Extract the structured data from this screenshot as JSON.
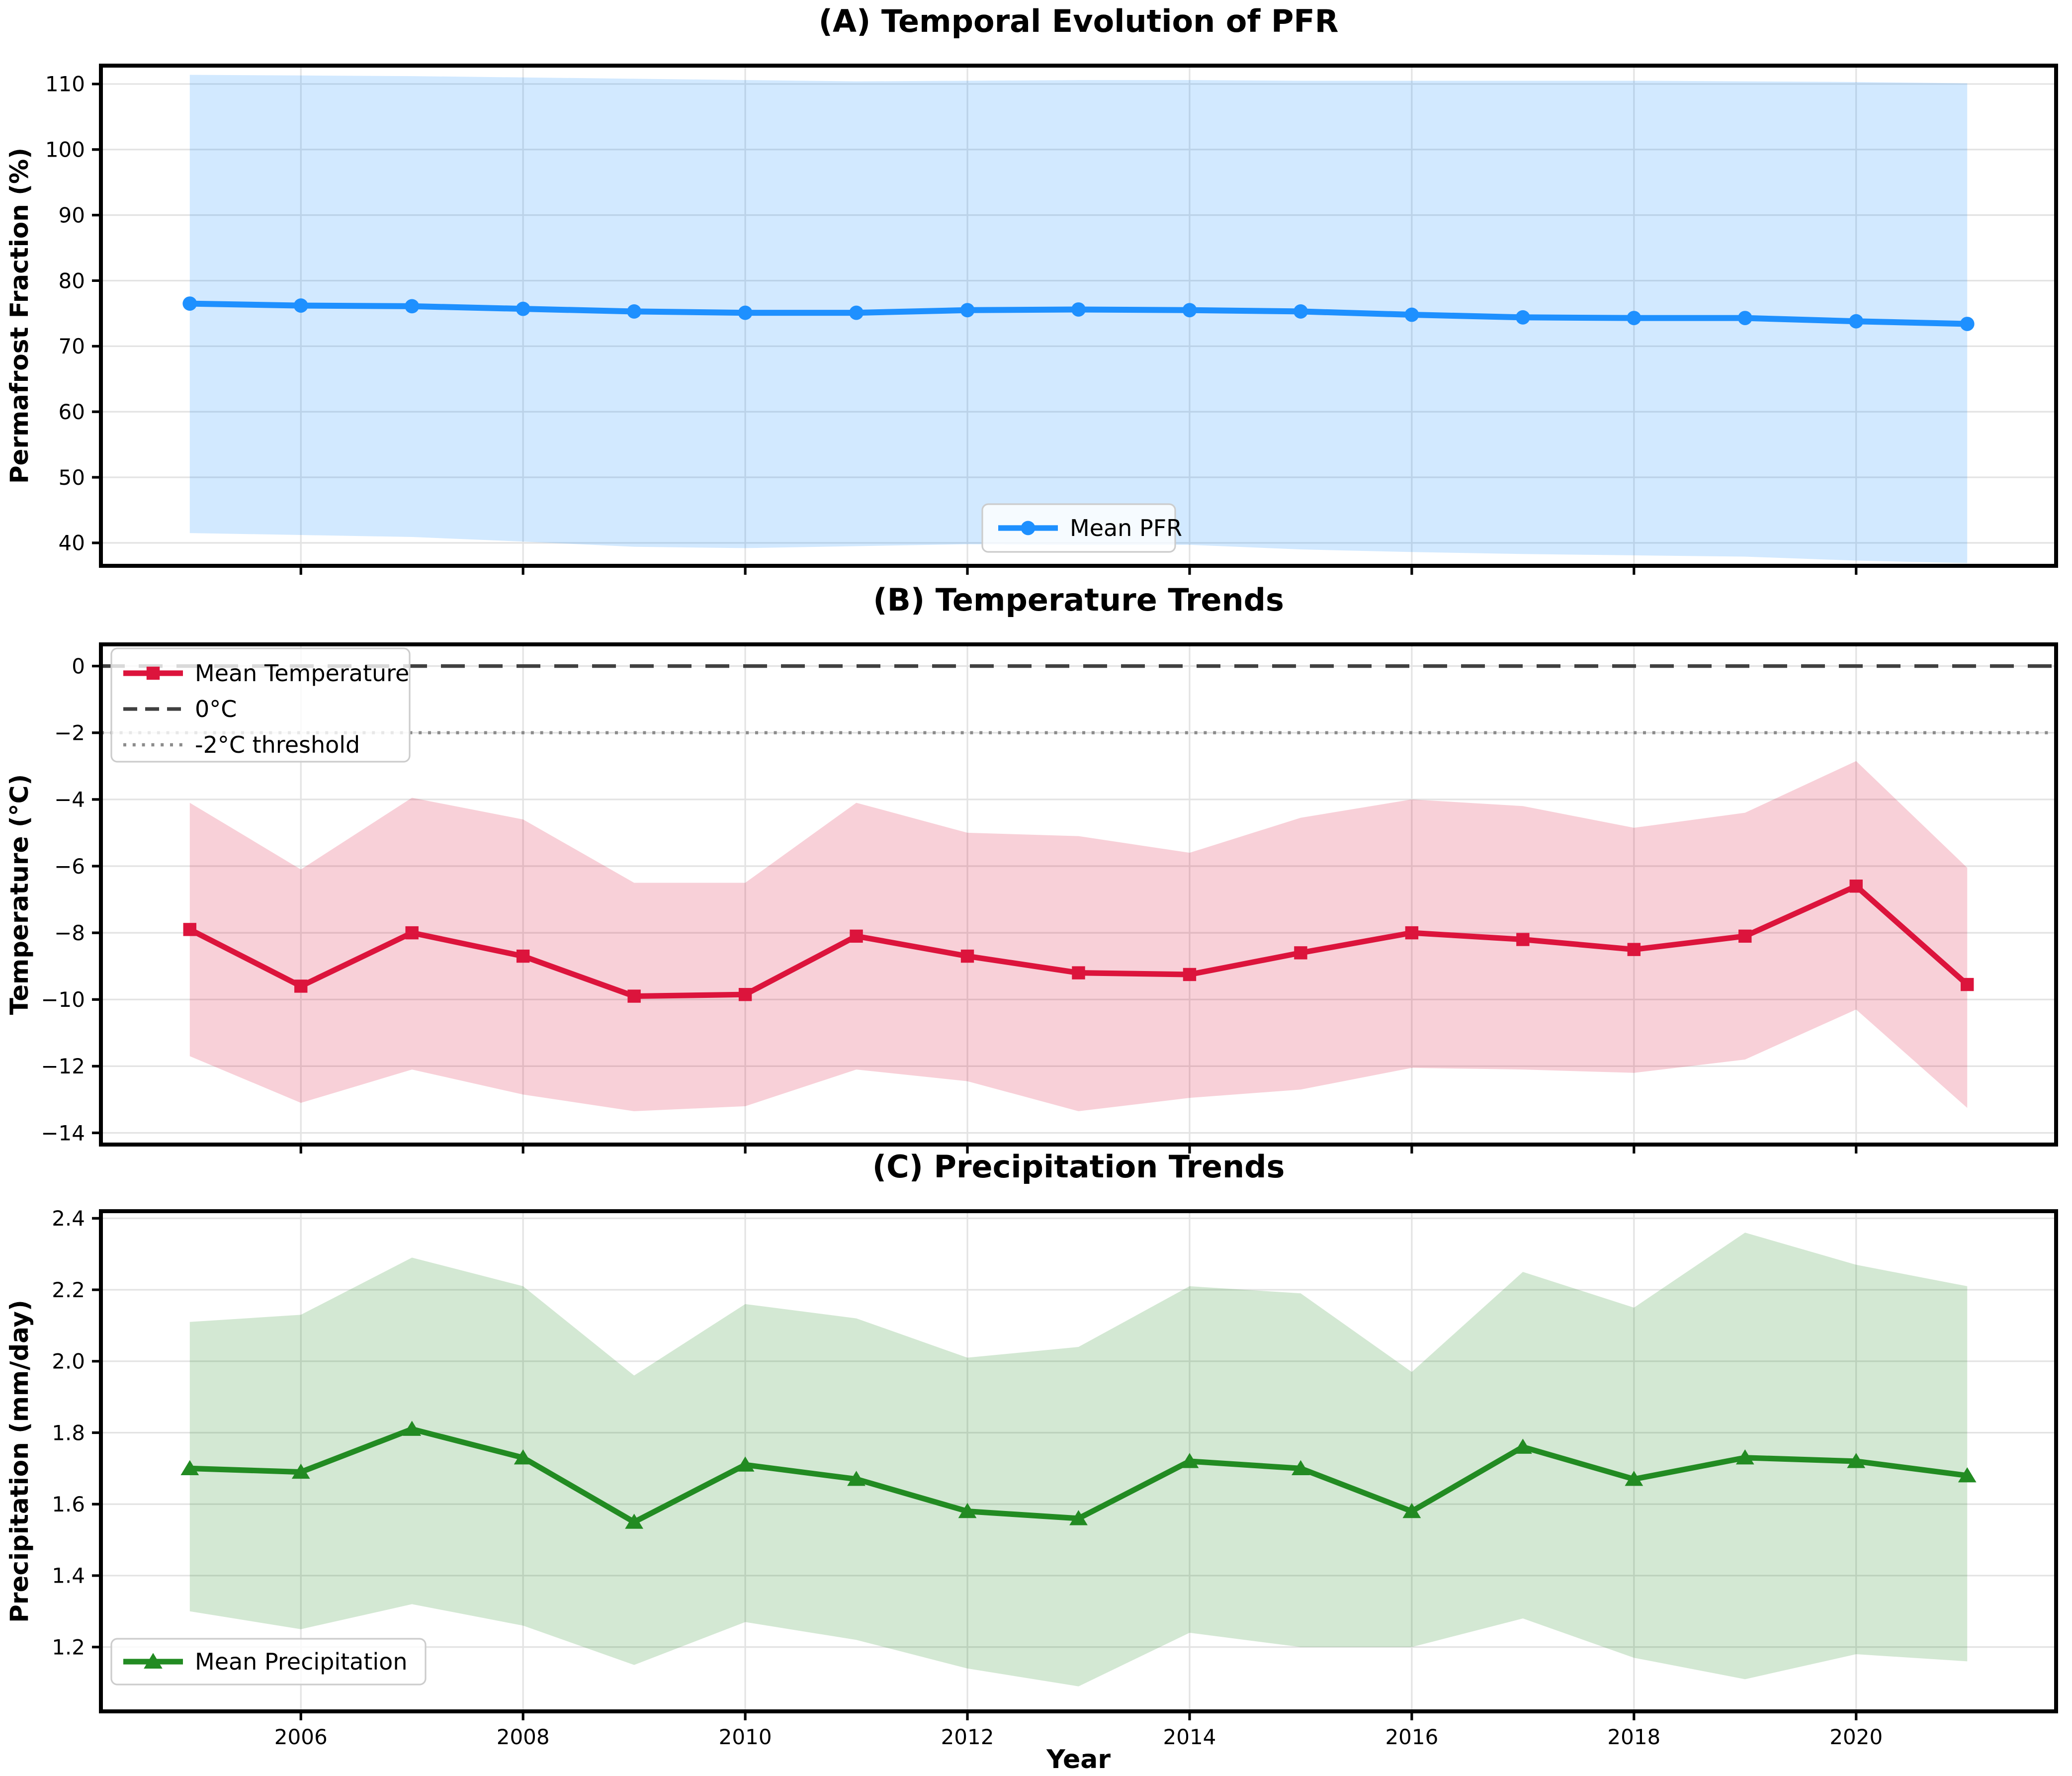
{
  "figure": {
    "xlabel": "Year",
    "x_tick_years": [
      2006,
      2008,
      2010,
      2012,
      2014,
      2016,
      2018,
      2020
    ],
    "x_tick_labels": [
      "2006",
      "2008",
      "2010",
      "2012",
      "2014",
      "2016",
      "2018",
      "2020"
    ],
    "xlim": [
      2004.2,
      2021.8
    ],
    "years": [
      2005,
      2006,
      2007,
      2008,
      2009,
      2010,
      2011,
      2012,
      2013,
      2014,
      2015,
      2016,
      2017,
      2018,
      2019,
      2020,
      2021
    ],
    "colors": {
      "pfr_line": "#1E90FF",
      "temp_line": "#DC143C",
      "precip_line": "#228B22",
      "zero_line": "#404040",
      "threshold_line": "#8c8c8c",
      "grid": "#e3e3e3",
      "spine": "#000000"
    }
  },
  "chart_data": [
    {
      "type": "line",
      "title": "(A) Temporal Evolution of PFR",
      "ylabel": "Permafrost Fraction (%)",
      "ylim": [
        36.5,
        112.8
      ],
      "yticks": [
        40,
        50,
        60,
        70,
        80,
        90,
        100,
        110
      ],
      "ytick_labels": [
        "40",
        "50",
        "60",
        "70",
        "80",
        "90",
        "100",
        "110"
      ],
      "x": [
        2005,
        2006,
        2007,
        2008,
        2009,
        2010,
        2011,
        2012,
        2013,
        2014,
        2015,
        2016,
        2017,
        2018,
        2019,
        2020,
        2021
      ],
      "series": [
        {
          "name": "Mean PFR",
          "marker": "circle",
          "color": "#1E90FF",
          "values": [
            76.5,
            76.2,
            76.1,
            75.7,
            75.3,
            75.1,
            75.1,
            75.5,
            75.6,
            75.5,
            75.3,
            74.8,
            74.4,
            74.3,
            74.3,
            73.8,
            73.4
          ]
        }
      ],
      "band": {
        "color": "#1E90FF",
        "upper": [
          111.4,
          111.3,
          111.2,
          111.0,
          110.8,
          110.6,
          110.4,
          110.5,
          110.6,
          110.6,
          110.5,
          110.5,
          110.5,
          110.5,
          110.4,
          110.3,
          110.1
        ],
        "lower": [
          41.5,
          41.2,
          40.9,
          40.2,
          39.4,
          39.2,
          39.5,
          39.8,
          39.7,
          39.7,
          39.0,
          38.6,
          38.3,
          38.1,
          37.9,
          37.3,
          36.9
        ]
      },
      "hlines": [],
      "legend_position": "lower center",
      "show_x_labels": false
    },
    {
      "type": "line",
      "title": "(B) Temperature Trends",
      "ylabel": "Temperature (°C)",
      "ylim": [
        -14.35,
        0.65
      ],
      "yticks": [
        0,
        -2,
        -4,
        -6,
        -8,
        -10,
        -12,
        -14
      ],
      "ytick_labels": [
        "0",
        "−2",
        "−4",
        "−6",
        "−8",
        "−10",
        "−12",
        "−14"
      ],
      "x": [
        2005,
        2006,
        2007,
        2008,
        2009,
        2010,
        2011,
        2012,
        2013,
        2014,
        2015,
        2016,
        2017,
        2018,
        2019,
        2020,
        2021
      ],
      "series": [
        {
          "name": "Mean Temperature",
          "marker": "square",
          "color": "#DC143C",
          "values": [
            -7.9,
            -9.6,
            -8.0,
            -8.7,
            -9.9,
            -9.85,
            -8.1,
            -8.7,
            -9.2,
            -9.25,
            -8.6,
            -8.0,
            -8.2,
            -8.5,
            -8.1,
            -6.6,
            -9.55
          ]
        }
      ],
      "band": {
        "color": "#DC143C",
        "upper": [
          -4.1,
          -6.1,
          -3.95,
          -4.6,
          -6.5,
          -6.5,
          -4.1,
          -5.0,
          -5.1,
          -5.6,
          -4.55,
          -4.0,
          -4.2,
          -4.85,
          -4.4,
          -2.85,
          -6.05
        ],
        "lower": [
          -11.7,
          -13.1,
          -12.1,
          -12.85,
          -13.35,
          -13.2,
          -12.1,
          -12.45,
          -13.35,
          -12.95,
          -12.7,
          -12.05,
          -12.1,
          -12.2,
          -11.8,
          -10.3,
          -13.25
        ]
      },
      "hlines": [
        {
          "y": 0,
          "style": "dashed",
          "color": "#404040",
          "label": "0°C"
        },
        {
          "y": -2,
          "style": "dotted",
          "color": "#8c8c8c",
          "label": "-2°C threshold"
        }
      ],
      "legend_position": "upper left",
      "show_x_labels": false
    },
    {
      "type": "line",
      "title": "(C) Precipitation Trends",
      "ylabel": "Precipitation (mm/day)",
      "ylim": [
        1.02,
        2.42
      ],
      "yticks": [
        1.2,
        1.4,
        1.6,
        1.8,
        2.0,
        2.2,
        2.4
      ],
      "ytick_labels": [
        "1.2",
        "1.4",
        "1.6",
        "1.8",
        "2.0",
        "2.2",
        "2.4"
      ],
      "x": [
        2005,
        2006,
        2007,
        2008,
        2009,
        2010,
        2011,
        2012,
        2013,
        2014,
        2015,
        2016,
        2017,
        2018,
        2019,
        2020,
        2021
      ],
      "series": [
        {
          "name": "Mean Precipitation",
          "marker": "triangle",
          "color": "#228B22",
          "values": [
            1.7,
            1.69,
            1.81,
            1.73,
            1.55,
            1.71,
            1.67,
            1.58,
            1.56,
            1.72,
            1.7,
            1.58,
            1.76,
            1.67,
            1.73,
            1.72,
            1.68
          ]
        }
      ],
      "band": {
        "color": "#228B22",
        "upper": [
          2.11,
          2.13,
          2.29,
          2.21,
          1.96,
          2.16,
          2.12,
          2.01,
          2.04,
          2.21,
          2.19,
          1.97,
          2.25,
          2.15,
          2.36,
          2.27,
          2.21
        ],
        "lower": [
          1.3,
          1.25,
          1.32,
          1.26,
          1.15,
          1.27,
          1.22,
          1.14,
          1.09,
          1.24,
          1.2,
          1.2,
          1.28,
          1.17,
          1.11,
          1.18,
          1.16
        ]
      },
      "hlines": [],
      "legend_position": "lower left",
      "show_x_labels": true
    }
  ]
}
